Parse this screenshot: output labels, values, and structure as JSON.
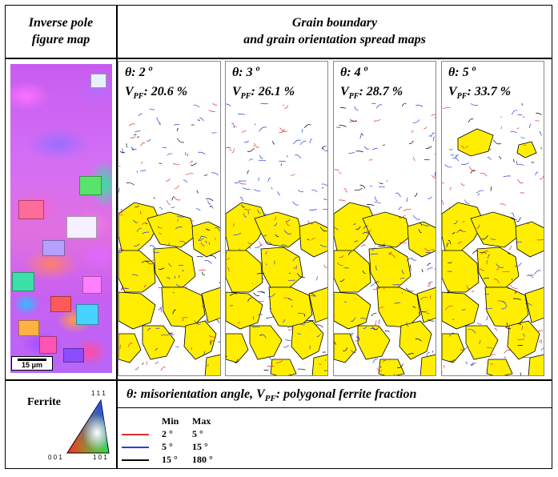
{
  "header": {
    "left_line1": "Inverse pole",
    "left_line2": "figure map",
    "right_line1": "Grain boundary",
    "right_line2": "and grain orientation spread maps"
  },
  "scale_bar": "15 μm",
  "panels": [
    {
      "theta_label": "θ: 2",
      "vpf_value": ": 20.6 %"
    },
    {
      "theta_label": "θ: 3",
      "vpf_value": ": 26.1 %"
    },
    {
      "theta_label": "θ: 4",
      "vpf_value": ": 28.7 %"
    },
    {
      "theta_label": "θ: 5",
      "vpf_value": ": 33.7 %"
    }
  ],
  "degree_symbol": "o",
  "vpf_symbol": "V",
  "vpf_subscript": "PF",
  "ferrite_label": "Ferrite",
  "triangle_labels": {
    "top": "1 1 1",
    "bottom_left": "0 0 1",
    "bottom_right": "1 0 1"
  },
  "note": {
    "part1": "θ: misorientation angle, V",
    "sub": "PF",
    "part2": ": polygonal ferrite fraction"
  },
  "legend": {
    "min_header": "Min",
    "max_header": "Max",
    "rows": [
      {
        "min": "2 °",
        "max": "5 °",
        "color": "#e03030"
      },
      {
        "min": "5 °",
        "max": "15 °",
        "color": "#2c3ce0"
      },
      {
        "min": "15 °",
        "max": "180 °",
        "color": "#000000"
      }
    ]
  },
  "colors": {
    "grain_fill": "#ffee00",
    "low_angle": "#e03030",
    "mid_angle": "#2c3ce0",
    "high_angle": "#000000"
  }
}
